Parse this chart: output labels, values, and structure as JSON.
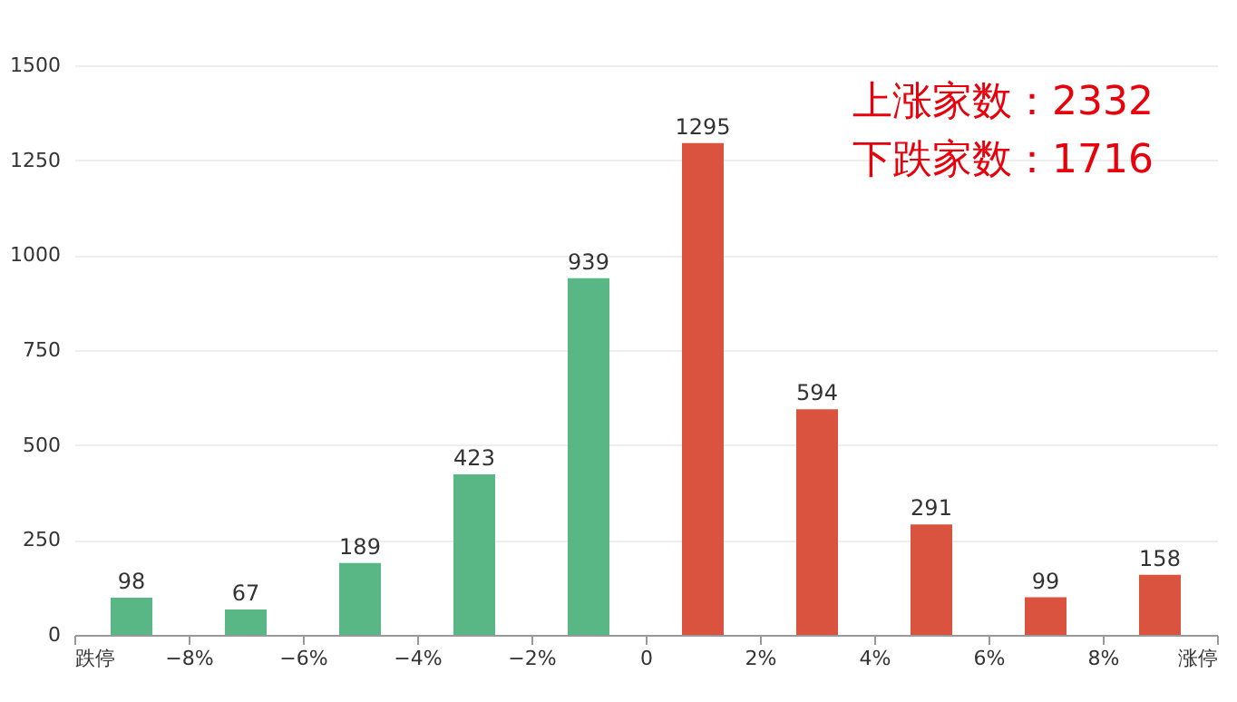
{
  "chart_data": {
    "type": "histogram",
    "bins": [
      -10,
      -8,
      -6,
      -4,
      -2,
      0,
      2,
      4,
      6,
      8,
      10
    ],
    "values": [
      98,
      67,
      189,
      423,
      939,
      1295,
      594,
      291,
      99,
      158
    ],
    "colors": [
      "#58b784",
      "#58b784",
      "#58b784",
      "#58b784",
      "#58b784",
      "#d9533f",
      "#d9533f",
      "#d9533f",
      "#d9533f",
      "#d9533f"
    ],
    "xlim": [
      -10,
      10
    ],
    "xticks": [
      {
        "value": -10,
        "label": "跌停"
      },
      {
        "value": -8,
        "label": "−8%"
      },
      {
        "value": -6,
        "label": "−6%"
      },
      {
        "value": -4,
        "label": "−4%"
      },
      {
        "value": -2,
        "label": "−2%"
      },
      0,
      {
        "value": 2,
        "label": "2%"
      },
      {
        "value": 4,
        "label": "4%"
      },
      {
        "value": 6,
        "label": "6%"
      },
      {
        "value": 8,
        "label": "8%"
      },
      {
        "value": 10,
        "label": "涨停"
      }
    ],
    "ylim": [
      0,
      1500
    ],
    "yticks": [
      0,
      250,
      500,
      750,
      1000,
      1250,
      1500
    ],
    "grid": "y",
    "data_labels": true,
    "annotations": [
      "上涨家数：2332",
      "下跌家数：1716"
    ]
  }
}
